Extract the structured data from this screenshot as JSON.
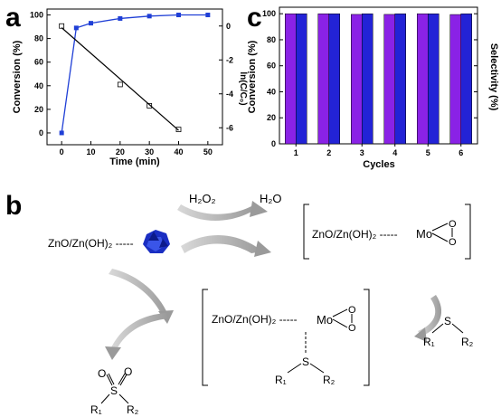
{
  "panels": {
    "a": {
      "letter": "a"
    },
    "b": {
      "letter": "b"
    },
    "c": {
      "letter": "c"
    }
  },
  "chart_data": [
    {
      "id": "a",
      "type": "line",
      "xlabel": "Time (min)",
      "ylabel_left": "Conversion (%)",
      "ylabel_right": "ln(C/C₀)",
      "xlim": [
        -5,
        55
      ],
      "ylim_left": [
        -10,
        105
      ],
      "ylim_right": [
        -7,
        1
      ],
      "xticks": [
        "0",
        "10",
        "20",
        "30",
        "40",
        "50"
      ],
      "yticks_left": [
        "0",
        "20",
        "40",
        "60",
        "80",
        "100"
      ],
      "yticks_right": [
        "-6",
        "-4",
        "-2",
        "0"
      ],
      "x_tick_values": [
        0,
        10,
        20,
        30,
        40,
        50
      ],
      "yleft_tick_values": [
        0,
        20,
        40,
        60,
        80,
        100
      ],
      "yright_tick_values": [
        -6,
        -4,
        -2,
        0
      ],
      "series": [
        {
          "axis": "left",
          "marker": "filled-square",
          "color": "#1f3fd6",
          "x": [
            0,
            5,
            10,
            20,
            30,
            40,
            50
          ],
          "y": [
            0,
            89,
            93,
            97,
            99,
            100,
            100
          ]
        },
        {
          "axis": "right",
          "marker": "open-square",
          "color": "#000000",
          "x": [
            0,
            20,
            30,
            40
          ],
          "y": [
            0,
            -3.45,
            -4.7,
            -6.1
          ]
        },
        {
          "axis": "right",
          "kind": "fit",
          "color": "#000000",
          "x": [
            0,
            40
          ],
          "y": [
            -0.1,
            -6.15
          ]
        }
      ]
    },
    {
      "id": "c",
      "type": "bar",
      "xlabel": "Cycles",
      "ylabel_left": "Conversion (%)",
      "ylabel_right": "Selectivity (%)",
      "categories": [
        "1",
        "2",
        "3",
        "4",
        "5",
        "6"
      ],
      "ylim": [
        0,
        105
      ],
      "yticks": [
        "0",
        "20",
        "40",
        "60",
        "80",
        "100"
      ],
      "y_tick_values": [
        0,
        20,
        40,
        60,
        80,
        100
      ],
      "series": [
        {
          "color": "#8a22e6",
          "values": [
            100,
            100,
            99.5,
            99.5,
            100,
            99.4
          ]
        },
        {
          "color": "#2323d6",
          "values": [
            100,
            100,
            100,
            100,
            100,
            100
          ]
        }
      ]
    }
  ],
  "scheme": {
    "h2o2": "H₂O₂",
    "h2o": "H₂O",
    "catalyst_support": "ZnO/Zn(OH)₂ -----",
    "support_peroxo_1": "ZnO/Zn(OH)₂ -----",
    "mo_1": "Mo",
    "support_peroxo_2": "ZnO/Zn(OH)₂ -----",
    "mo_2": "Mo",
    "o_label": "O",
    "s_label": "S",
    "r1_label": "R₁",
    "r2_label": "R₂"
  }
}
